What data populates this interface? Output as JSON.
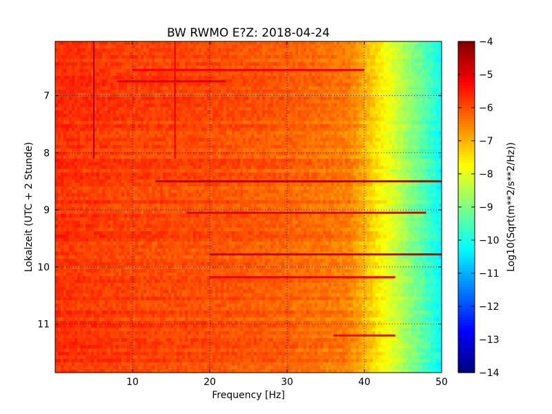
{
  "chart_data": {
    "type": "heatmap",
    "title": "BW RWMO E?Z: 2018-04-24",
    "xlabel": "Frequency [Hz]",
    "ylabel": "Lokalzeit (UTC + 2 Stunde)",
    "colorbar_label": "Log10(Sqrt(m**2/s**2/Hz))",
    "xlim": [
      0,
      50
    ],
    "ylim": [
      6.05,
      11.85
    ],
    "y_inverted": true,
    "x_ticks": [
      10,
      20,
      30,
      40,
      50
    ],
    "y_ticks": [
      7,
      8,
      9,
      10,
      11
    ],
    "x_tick_labels": [
      "10",
      "20",
      "30",
      "40",
      "50"
    ],
    "y_tick_labels": [
      "7",
      "8",
      "9",
      "10",
      "11"
    ],
    "clim": [
      -14,
      -4
    ],
    "colorbar_ticks": [
      -4,
      -5,
      -6,
      -7,
      -8,
      -9,
      -10,
      -11,
      -12,
      -13,
      -14
    ],
    "colorbar_tick_labels": [
      "−4",
      "−5",
      "−6",
      "−7",
      "−8",
      "−9",
      "−10",
      "−11",
      "−12",
      "−13",
      "−14"
    ],
    "colormap": "jet",
    "grid": true,
    "baseline_profile": {
      "frequency_hz": [
        0,
        10,
        20,
        30,
        38,
        40,
        42,
        44,
        46,
        48,
        50
      ],
      "level": [
        -5.7,
        -5.9,
        -6.0,
        -6.2,
        -6.5,
        -7.0,
        -7.6,
        -8.2,
        -8.9,
        -9.5,
        -10.2
      ]
    },
    "features": [
      {
        "kind": "vertical_line",
        "frequency_hz": 5.0,
        "time_range": [
          6.05,
          8.1
        ],
        "level": -4.4
      },
      {
        "kind": "vertical_line",
        "frequency_hz": 15.5,
        "time_range": [
          6.05,
          8.1
        ],
        "level": -5.0
      },
      {
        "kind": "horizontal_band",
        "time": 8.5,
        "frequency_range": [
          13,
          50
        ],
        "level": -4.6
      },
      {
        "kind": "horizontal_band",
        "time": 9.78,
        "frequency_range": [
          20,
          50
        ],
        "level": -4.7
      },
      {
        "kind": "horizontal_band",
        "time": 9.05,
        "frequency_range": [
          17,
          48
        ],
        "level": -5.0
      },
      {
        "kind": "horizontal_band",
        "time": 6.55,
        "frequency_range": [
          10,
          40
        ],
        "level": -5.2
      },
      {
        "kind": "horizontal_band",
        "time": 6.75,
        "frequency_range": [
          8,
          22
        ],
        "level": -5.0
      },
      {
        "kind": "horizontal_band",
        "time": 10.18,
        "frequency_range": [
          20,
          44
        ],
        "level": -5.1
      },
      {
        "kind": "horizontal_band",
        "time": 11.2,
        "frequency_range": [
          36,
          44
        ],
        "level": -5.2
      }
    ]
  }
}
